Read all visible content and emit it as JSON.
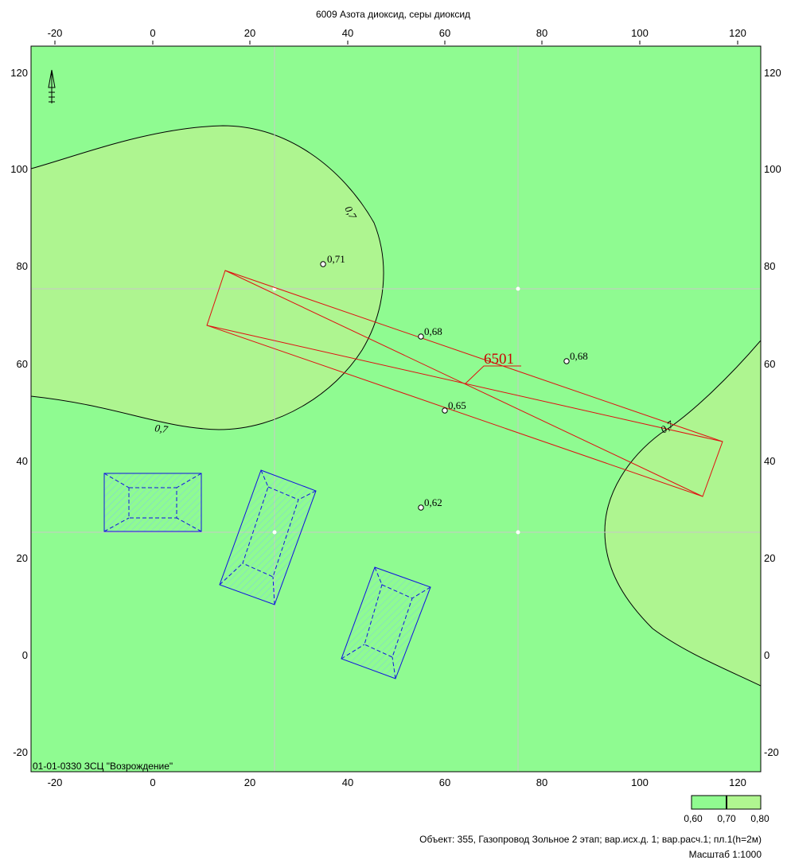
{
  "title": "6009 Азота диоксид, серы диоксид",
  "x_axis_ticks": [
    "-20",
    "0",
    "20",
    "40",
    "60",
    "80",
    "100",
    "120"
  ],
  "y_axis_ticks": [
    "120",
    "100",
    "80",
    "60",
    "40",
    "20",
    "0",
    "-20"
  ],
  "isoline_labels": [
    "0,7",
    "0,7",
    "0,7"
  ],
  "points": [
    {
      "label": "0,71"
    },
    {
      "label": "0,68"
    },
    {
      "label": "0,68"
    },
    {
      "label": "0,65"
    },
    {
      "label": "0,62"
    }
  ],
  "source_label": "6501",
  "organization": "01-01-0330 ЗСЦ  \"Возрождение\"",
  "legend": {
    "labels": [
      "0,60",
      "0,70",
      "0,80"
    ],
    "colors": [
      "#90fb90",
      "#b0f690"
    ]
  },
  "footer": {
    "object_line": "Объект: 355, Газопровод Зольное 2 этап; вар.исх.д. 1; вар.расч.1; пл.1(h=2м)",
    "scale_line": "Масштаб 1:1000"
  },
  "colors": {
    "background_zone": "#8ffb91",
    "high_zone": "#aef590",
    "source_outline": "#e01010",
    "building_outline": "#1010e0",
    "grid": "#c8c8c8"
  }
}
